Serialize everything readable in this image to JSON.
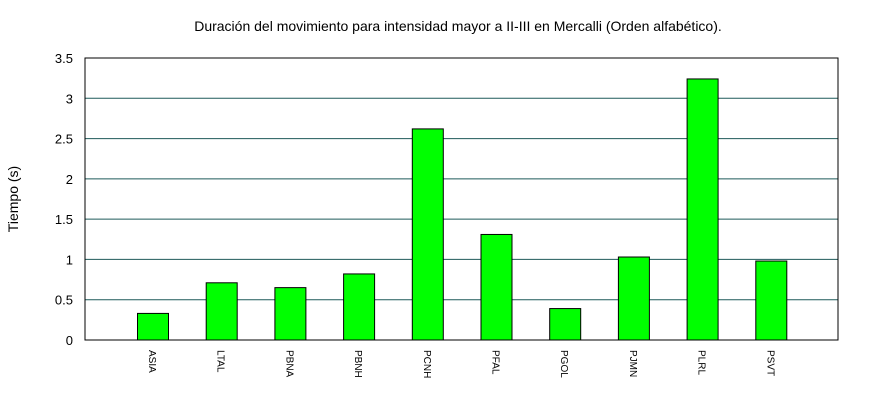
{
  "chart_data": {
    "type": "bar",
    "title": "Duración del movimiento para intensidad mayor a II-III en Mercalli (Orden alfabético).",
    "xlabel": "",
    "ylabel": "Tiempo (s)",
    "ylim": [
      0,
      3.5
    ],
    "yticks": [
      "0",
      "0.5",
      "1",
      "1.5",
      "2",
      "2.5",
      "3",
      "3.5"
    ],
    "grid": true,
    "categories": [
      "ASIA",
      "LTAL",
      "PBNA",
      "PBNH",
      "PCNH",
      "PFAL",
      "PGOL",
      "PJMN",
      "PLRL",
      "PSVT"
    ],
    "values": [
      0.33,
      0.71,
      0.65,
      0.82,
      2.62,
      1.31,
      0.39,
      1.03,
      3.24,
      0.98
    ],
    "colors": {
      "bar": "#00ff00",
      "bar_stroke": "#000000",
      "grid": "#1f5a5a"
    }
  }
}
